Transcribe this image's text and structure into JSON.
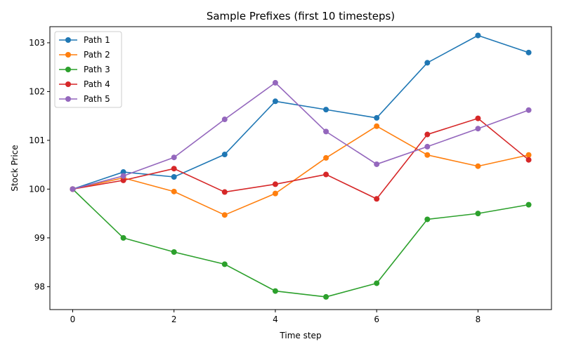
{
  "chart_data": {
    "type": "line",
    "title": "Sample Prefixes (first 10 timesteps)",
    "xlabel": "Time step",
    "ylabel": "Stock Price",
    "x": [
      0,
      1,
      2,
      3,
      4,
      5,
      6,
      7,
      8,
      9
    ],
    "xlim": [
      -0.45,
      9.45
    ],
    "ylim": [
      97.53,
      103.33
    ],
    "xticks": [
      0,
      2,
      4,
      6,
      8
    ],
    "yticks": [
      98,
      99,
      100,
      101,
      102,
      103
    ],
    "grid": false,
    "legend_position": "top-left",
    "series": [
      {
        "name": "Path 1",
        "color": "#1f77b4",
        "values": [
          100.0,
          100.35,
          100.25,
          100.71,
          101.8,
          101.63,
          101.46,
          102.59,
          103.15,
          102.8
        ]
      },
      {
        "name": "Path 2",
        "color": "#ff7f0e",
        "values": [
          100.0,
          100.23,
          99.95,
          99.47,
          99.91,
          100.64,
          101.29,
          100.7,
          100.47,
          100.7
        ]
      },
      {
        "name": "Path 3",
        "color": "#2ca02c",
        "values": [
          100.0,
          99.0,
          98.71,
          98.46,
          97.91,
          97.79,
          98.07,
          99.38,
          99.5,
          99.68
        ]
      },
      {
        "name": "Path 4",
        "color": "#d62728",
        "values": [
          100.0,
          100.18,
          100.42,
          99.94,
          100.1,
          100.3,
          99.8,
          101.12,
          101.45,
          100.6
        ]
      },
      {
        "name": "Path 5",
        "color": "#9467bd",
        "values": [
          100.0,
          100.27,
          100.65,
          101.43,
          102.18,
          101.18,
          100.51,
          100.87,
          101.24,
          101.62
        ]
      }
    ]
  }
}
